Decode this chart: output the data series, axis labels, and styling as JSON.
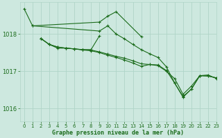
{
  "title": "Graphe pression niveau de la mer (hPa)",
  "background_color": "#cde8df",
  "grid_color": "#b0d4c8",
  "line_color": "#1a6b1a",
  "marker": "+",
  "xlim": [
    -0.5,
    23
  ],
  "ylim": [
    1015.65,
    1018.85
  ],
  "yticks": [
    1016,
    1017,
    1018
  ],
  "xticks": [
    0,
    1,
    2,
    3,
    4,
    5,
    6,
    7,
    8,
    9,
    10,
    11,
    12,
    13,
    14,
    15,
    16,
    17,
    18,
    19,
    20,
    21,
    22,
    23
  ],
  "lines": [
    {
      "x": [
        0,
        1,
        9,
        10,
        11,
        14
      ],
      "y": [
        1018.68,
        1018.22,
        1018.32,
        1018.48,
        1018.6,
        1017.93
      ]
    },
    {
      "x": [
        2,
        3,
        4,
        5,
        6,
        7,
        8,
        9
      ],
      "y": [
        1017.88,
        1017.72,
        1017.62,
        1017.62,
        1017.6,
        1017.58,
        1017.58,
        1017.95
      ]
    },
    {
      "x": [
        2,
        3,
        4,
        5,
        6,
        7,
        8,
        9,
        10,
        11,
        12,
        13,
        14,
        15,
        16,
        17,
        18,
        19,
        20,
        21,
        22,
        23
      ],
      "y": [
        1017.88,
        1017.72,
        1017.65,
        1017.62,
        1017.6,
        1017.58,
        1017.57,
        1017.52,
        1017.46,
        1017.4,
        1017.35,
        1017.28,
        1017.2,
        1017.18,
        1017.15,
        1017.0,
        1016.8,
        1016.38,
        1016.6,
        1016.88,
        1016.87,
        1016.82
      ]
    },
    {
      "x": [
        2,
        3,
        4,
        5,
        6,
        7,
        8,
        9,
        10,
        11,
        12,
        13,
        14,
        15,
        16,
        17,
        18,
        19,
        20,
        21,
        22,
        23
      ],
      "y": [
        1017.88,
        1017.72,
        1017.65,
        1017.62,
        1017.6,
        1017.57,
        1017.55,
        1017.5,
        1017.43,
        1017.37,
        1017.3,
        1017.22,
        1017.13,
        1017.18,
        1017.17,
        1017.02,
        1016.68,
        1016.32,
        1016.52,
        1016.88,
        1016.87,
        1016.82
      ]
    },
    {
      "x": [
        1,
        9,
        10,
        11,
        12,
        13,
        14,
        15,
        16,
        17,
        18,
        19,
        20,
        21,
        22,
        23
      ],
      "y": [
        1018.22,
        1018.08,
        1018.22,
        1018.0,
        1017.87,
        1017.72,
        1017.58,
        1017.47,
        1017.37,
        1017.12,
        1016.68,
        1016.3,
        1016.52,
        1016.88,
        1016.9,
        1016.8
      ]
    }
  ]
}
